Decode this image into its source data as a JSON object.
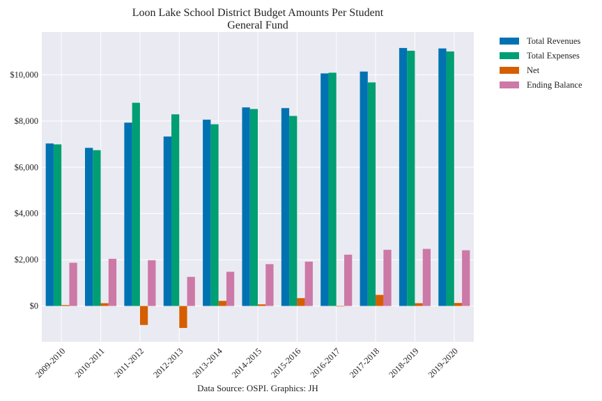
{
  "chart_data": {
    "type": "bar",
    "title": "Loon Lake School District Budget Amounts Per Student",
    "subtitle": "General Fund",
    "xlabel": "Data Source: OSPI. Graphics: JH",
    "ylabel": "",
    "categories": [
      "2009-2010",
      "2010-2011",
      "2011-2012",
      "2012-2013",
      "2013-2014",
      "2014-2015",
      "2015-2016",
      "2016-2017",
      "2017-2018",
      "2018-2019",
      "2019-2020"
    ],
    "series": [
      {
        "name": "Total Revenues",
        "color": "#0072B2",
        "values": [
          7030,
          6840,
          7930,
          7330,
          8060,
          8590,
          8560,
          10060,
          10140,
          11160,
          11140
        ]
      },
      {
        "name": "Total Expenses",
        "color": "#009E73",
        "values": [
          6990,
          6740,
          8790,
          8290,
          7860,
          8520,
          8220,
          10090,
          9670,
          11040,
          11010
        ]
      },
      {
        "name": "Net",
        "color": "#D55E00",
        "values": [
          40,
          120,
          -820,
          -950,
          220,
          70,
          340,
          -20,
          480,
          120,
          130
        ]
      },
      {
        "name": "Ending Balance",
        "color": "#CC79A7",
        "values": [
          1870,
          2040,
          1980,
          1260,
          1480,
          1810,
          1920,
          2220,
          2430,
          2470,
          2410
        ]
      }
    ],
    "ylim": [
      -1550,
      11850
    ],
    "yticks": [
      0,
      2000,
      4000,
      6000,
      8000,
      10000
    ],
    "ytick_labels": [
      "$0",
      "$2,000",
      "$4,000",
      "$6,000",
      "$8,000",
      "$10,000"
    ],
    "grid": true,
    "legend_placement": "outside-top-right"
  }
}
